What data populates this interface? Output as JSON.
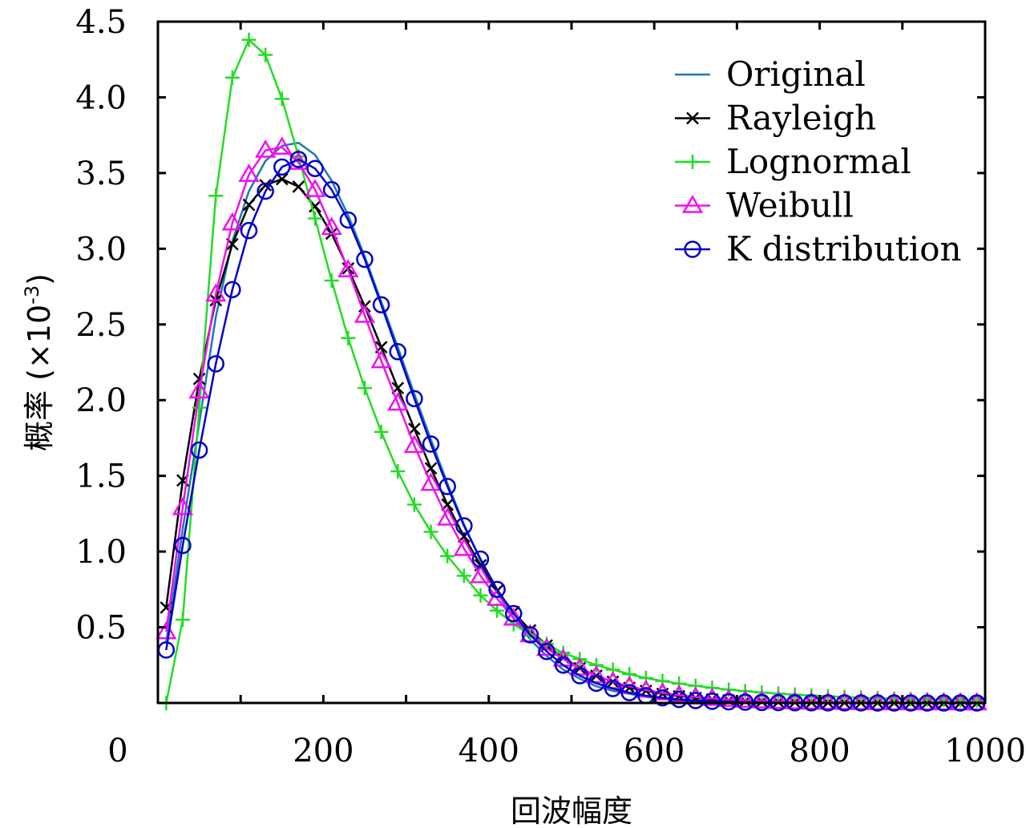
{
  "chart_data": {
    "type": "line",
    "title": "",
    "xlabel": "回波幅度",
    "ylabel_main": "概率 (×10",
    "ylabel_exp": "-3",
    "ylabel_close": ")",
    "xlim": [
      0,
      1000
    ],
    "ylim": [
      0,
      4.5
    ],
    "grid": false,
    "legend_position": "top-right",
    "x_ticks": [
      0,
      200,
      400,
      600,
      800,
      1000
    ],
    "x_tick_labels": [
      "0",
      "200",
      "400",
      "600",
      "800",
      "1000"
    ],
    "x_minor_ticks": [
      100,
      300,
      500,
      700,
      900
    ],
    "y_ticks": [
      0.5,
      1.0,
      1.5,
      2.0,
      2.5,
      3.0,
      3.5,
      4.0,
      4.5
    ],
    "y_tick_labels": [
      "0.5",
      "1.0",
      "1.5",
      "2.0",
      "2.5",
      "3.0",
      "3.5",
      "4.0",
      "4.5"
    ],
    "x": [
      10,
      30,
      50,
      70,
      90,
      110,
      130,
      150,
      170,
      190,
      210,
      230,
      250,
      270,
      290,
      310,
      330,
      350,
      370,
      390,
      410,
      430,
      450,
      470,
      490,
      510,
      530,
      550,
      570,
      590,
      610,
      630,
      650,
      670,
      690,
      710,
      730,
      750,
      770,
      790,
      810,
      830,
      850,
      870,
      890,
      910,
      930,
      950,
      970,
      990
    ],
    "series": [
      {
        "name": "Original",
        "color": "#1f77b4",
        "marker": "none",
        "values": [
          0.4,
          1.15,
          1.85,
          2.55,
          3.05,
          3.38,
          3.58,
          3.68,
          3.7,
          3.62,
          3.45,
          3.22,
          2.95,
          2.65,
          2.35,
          2.04,
          1.74,
          1.45,
          1.18,
          0.94,
          0.73,
          0.56,
          0.42,
          0.31,
          0.22,
          0.16,
          0.11,
          0.08,
          0.06,
          0.04,
          0.03,
          0.02,
          0.015,
          0.01,
          0.008,
          0.006,
          0.004,
          0.003,
          0.002,
          0.002,
          0.001,
          0.001,
          0.001,
          0.0,
          0.0,
          0.0,
          0.0,
          0.0,
          0.0,
          0.0
        ]
      },
      {
        "name": "Rayleigh",
        "color": "#000000",
        "marker": "x",
        "values": [
          0.63,
          1.47,
          2.14,
          2.66,
          3.03,
          3.29,
          3.42,
          3.46,
          3.41,
          3.28,
          3.1,
          2.87,
          2.62,
          2.35,
          2.08,
          1.81,
          1.55,
          1.31,
          1.1,
          0.91,
          0.74,
          0.6,
          0.48,
          0.38,
          0.3,
          0.23,
          0.18,
          0.14,
          0.1,
          0.08,
          0.06,
          0.045,
          0.033,
          0.024,
          0.017,
          0.012,
          0.009,
          0.006,
          0.004,
          0.003,
          0.002,
          0.0015,
          0.001,
          0.0007,
          0.0005,
          0.0003,
          0.0002,
          0.0001,
          0.0001,
          0.0
        ]
      },
      {
        "name": "Lognormal",
        "color": "#22dd22",
        "marker": "+",
        "values": [
          0.0,
          0.55,
          1.95,
          3.35,
          4.13,
          4.38,
          4.28,
          3.99,
          3.61,
          3.2,
          2.79,
          2.41,
          2.08,
          1.79,
          1.53,
          1.31,
          1.13,
          0.97,
          0.84,
          0.71,
          0.61,
          0.52,
          0.45,
          0.39,
          0.33,
          0.29,
          0.25,
          0.22,
          0.19,
          0.165,
          0.145,
          0.128,
          0.113,
          0.1,
          0.088,
          0.078,
          0.069,
          0.062,
          0.055,
          0.049,
          0.044,
          0.039,
          0.035,
          0.031,
          0.028,
          0.025,
          0.023,
          0.021,
          0.019,
          0.017
        ]
      },
      {
        "name": "Weibull",
        "color": "#ee11ee",
        "marker": "triangle",
        "values": [
          0.47,
          1.29,
          2.06,
          2.7,
          3.17,
          3.49,
          3.65,
          3.67,
          3.57,
          3.39,
          3.14,
          2.86,
          2.56,
          2.26,
          1.98,
          1.7,
          1.45,
          1.22,
          1.02,
          0.84,
          0.69,
          0.56,
          0.45,
          0.36,
          0.29,
          0.23,
          0.18,
          0.14,
          0.11,
          0.085,
          0.066,
          0.051,
          0.039,
          0.03,
          0.023,
          0.017,
          0.013,
          0.01,
          0.007,
          0.005,
          0.004,
          0.003,
          0.002,
          0.0015,
          0.001,
          0.0008,
          0.0006,
          0.0004,
          0.0003,
          0.0002
        ]
      },
      {
        "name": "K distribution",
        "color": "#0000cc",
        "marker": "circle",
        "values": [
          0.35,
          1.04,
          1.67,
          2.24,
          2.73,
          3.12,
          3.38,
          3.54,
          3.59,
          3.53,
          3.39,
          3.19,
          2.93,
          2.63,
          2.32,
          2.01,
          1.71,
          1.43,
          1.17,
          0.95,
          0.75,
          0.59,
          0.45,
          0.34,
          0.25,
          0.18,
          0.13,
          0.095,
          0.068,
          0.048,
          0.034,
          0.023,
          0.016,
          0.011,
          0.0075,
          0.005,
          0.0034,
          0.0022,
          0.0015,
          0.001,
          0.0006,
          0.0004,
          0.0003,
          0.0002,
          0.0001,
          0.0001,
          0.0,
          0.0,
          0.0,
          0.0
        ]
      }
    ]
  }
}
